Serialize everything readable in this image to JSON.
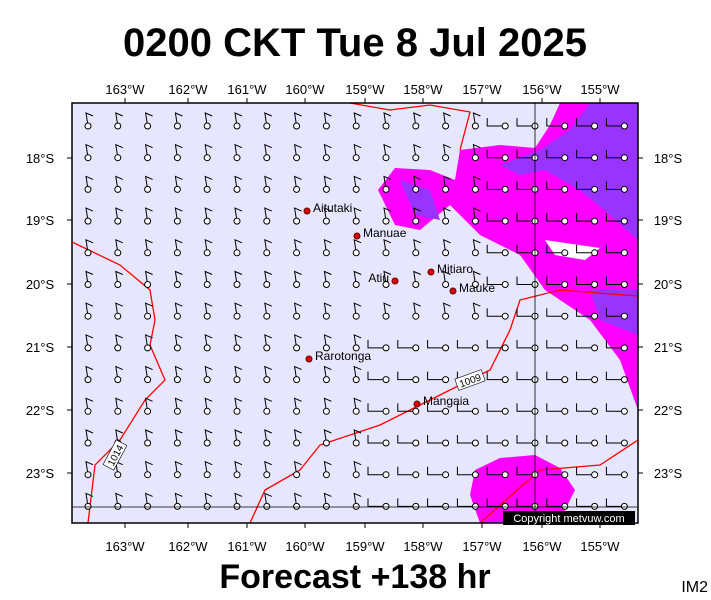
{
  "header": {
    "title": "0200 CKT Tue 8 Jul 2025"
  },
  "footer": {
    "forecast": "Forecast +138 hr",
    "id": "IM2"
  },
  "map": {
    "lon_labels": [
      "163°W",
      "162°W",
      "161°W",
      "160°W",
      "159°W",
      "158°W",
      "157°W",
      "156°W",
      "155°W"
    ],
    "lat_labels": [
      "18°S",
      "19°S",
      "20°S",
      "21°S",
      "22°S",
      "23°S"
    ],
    "places": [
      "Aitutaki",
      "Manuae",
      "Atiu",
      "Mitiaro",
      "Mauke",
      "Rarotonga",
      "Mangaia"
    ],
    "isobars": [
      "1014",
      "1009"
    ],
    "copyright": "Copyright metvuw.com"
  }
}
